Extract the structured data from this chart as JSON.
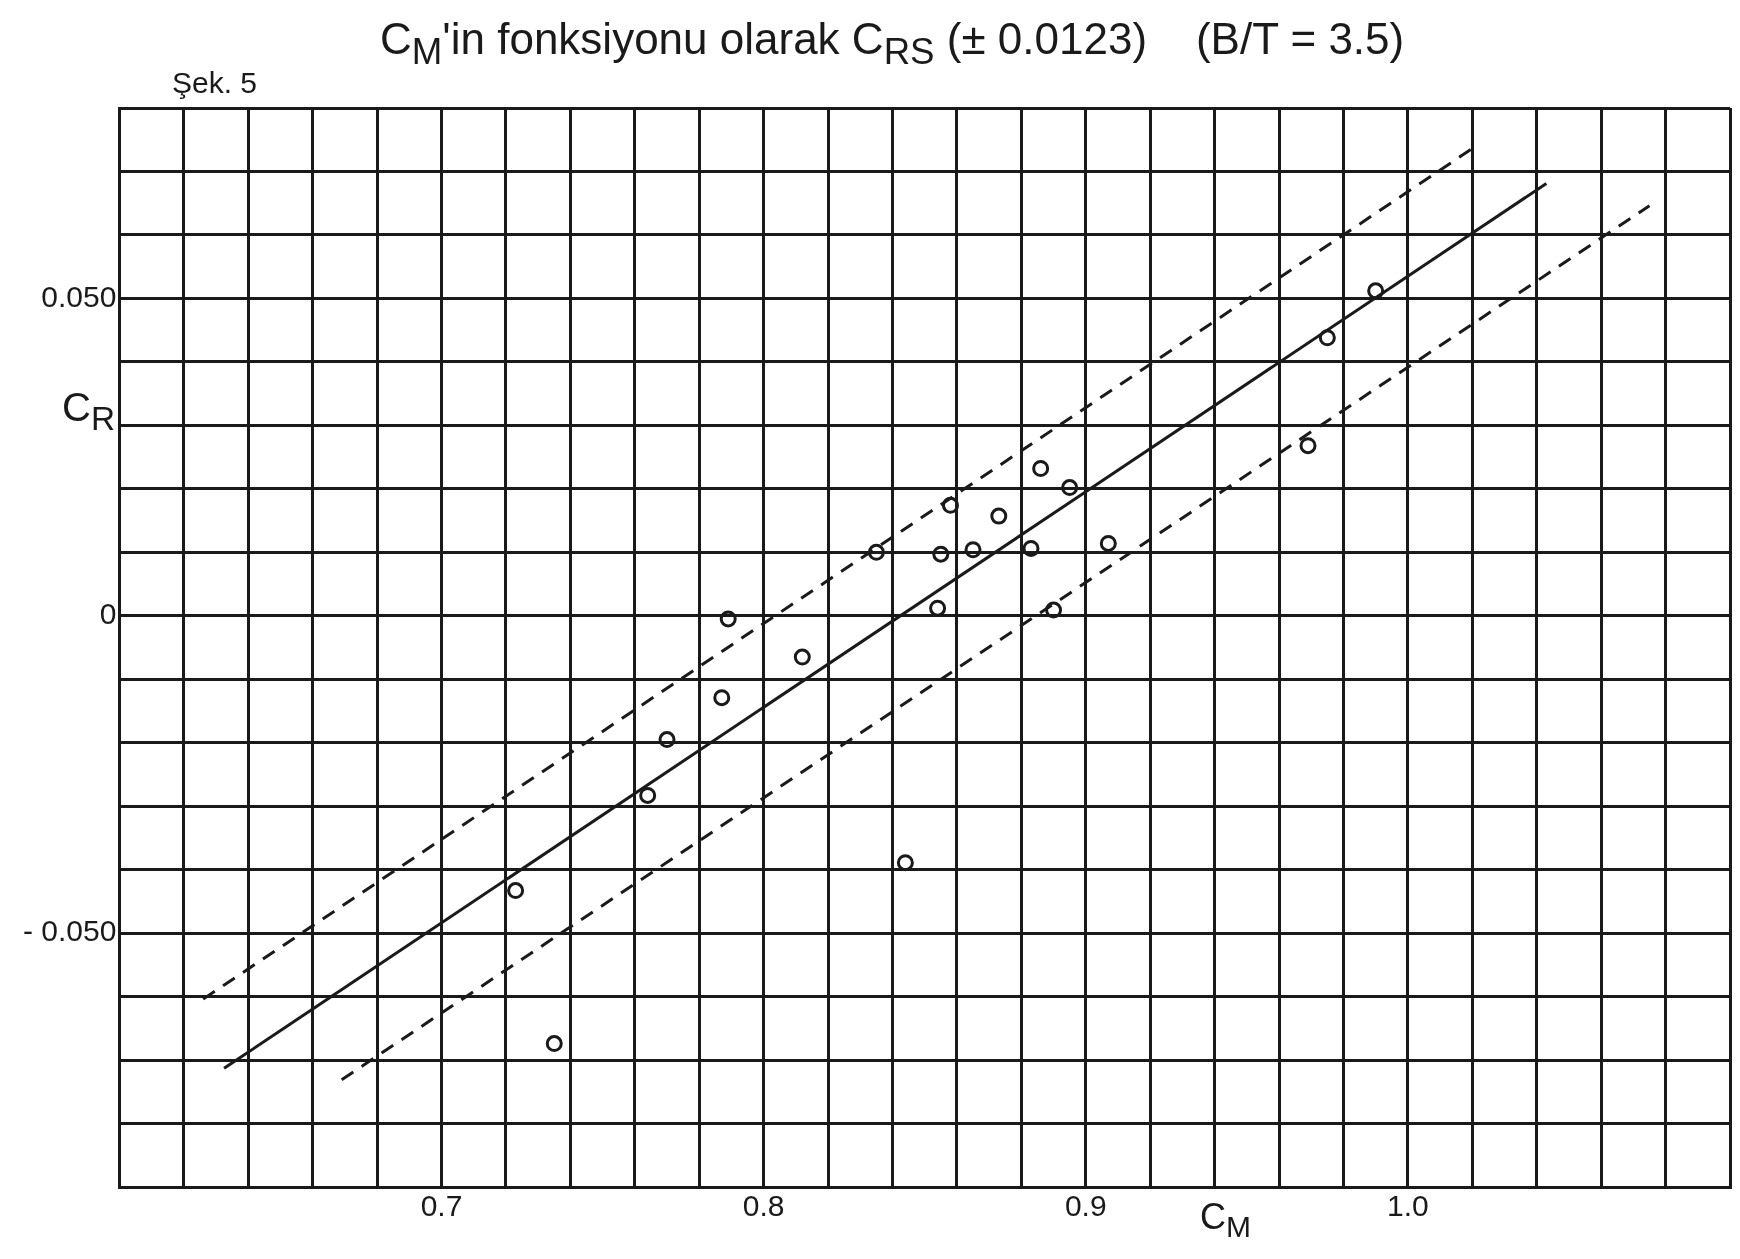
{
  "chart_data": {
    "type": "scatter",
    "title": "C$_{M}$'in fonksiyonu olarak C$_{RS}$ (± 0.0123)    (B/T = 3.5)",
    "xlabel": "C$_{M}$",
    "ylabel": "C$_{R}$",
    "annotations": [
      "Şek. 5"
    ],
    "xlim": [
      0.6,
      1.1
    ],
    "ylim": [
      -0.09,
      0.08
    ],
    "xticks": [
      {
        "value": 0.6,
        "label": null
      },
      {
        "value": 0.62,
        "label": null
      },
      {
        "value": 0.64,
        "label": null
      },
      {
        "value": 0.66,
        "label": null
      },
      {
        "value": 0.68,
        "label": null
      },
      {
        "value": 0.7,
        "label": "0.7"
      },
      {
        "value": 0.72,
        "label": null
      },
      {
        "value": 0.74,
        "label": null
      },
      {
        "value": 0.76,
        "label": null
      },
      {
        "value": 0.78,
        "label": null
      },
      {
        "value": 0.8,
        "label": "0.8"
      },
      {
        "value": 0.82,
        "label": null
      },
      {
        "value": 0.84,
        "label": null
      },
      {
        "value": 0.86,
        "label": null
      },
      {
        "value": 0.88,
        "label": null
      },
      {
        "value": 0.9,
        "label": "0.9"
      },
      {
        "value": 0.92,
        "label": null
      },
      {
        "value": 0.94,
        "label": null
      },
      {
        "value": 0.96,
        "label": null
      },
      {
        "value": 0.98,
        "label": null
      },
      {
        "value": 1.0,
        "label": "1.0"
      },
      {
        "value": 1.02,
        "label": null
      },
      {
        "value": 1.04,
        "label": null
      },
      {
        "value": 1.06,
        "label": null
      },
      {
        "value": 1.08,
        "label": null
      },
      {
        "value": 1.1,
        "label": null
      }
    ],
    "yticks": [
      {
        "value": -0.09,
        "label": null
      },
      {
        "value": -0.08,
        "label": null
      },
      {
        "value": -0.07,
        "label": null
      },
      {
        "value": -0.06,
        "label": null
      },
      {
        "value": -0.05,
        "label": "- 0.050"
      },
      {
        "value": -0.04,
        "label": null
      },
      {
        "value": -0.03,
        "label": null
      },
      {
        "value": -0.02,
        "label": null
      },
      {
        "value": -0.01,
        "label": null
      },
      {
        "value": 0,
        "label": "0"
      },
      {
        "value": 0.01,
        "label": null
      },
      {
        "value": 0.02,
        "label": null
      },
      {
        "value": 0.03,
        "label": null
      },
      {
        "value": 0.04,
        "label": null
      },
      {
        "value": 0.05,
        "label": "0.050"
      },
      {
        "value": 0.06,
        "label": null
      },
      {
        "value": 0.07,
        "label": null
      },
      {
        "value": 0.08,
        "label": null
      }
    ],
    "grid": true,
    "legend": false,
    "series": [
      {
        "type": "scatter",
        "color": "#1a1a1a",
        "marker": "circle",
        "x": [
          0.723,
          0.735,
          0.764,
          0.77,
          0.787,
          0.789,
          0.812,
          0.835,
          0.844,
          0.854,
          0.855,
          0.858,
          0.865,
          0.873,
          0.883,
          0.886,
          0.89,
          0.895,
          0.907,
          0.969,
          0.975,
          0.99
        ],
        "values": [
          -0.0433,
          -0.0674,
          -0.0283,
          -0.0195,
          -0.0129,
          -0.0005,
          -0.0065,
          0.01,
          -0.0389,
          0.0012,
          0.0097,
          0.0174,
          0.0104,
          0.0157,
          0.0106,
          0.0232,
          0.0009,
          0.0202,
          0.0114,
          0.0268,
          0.0438,
          0.0512
        ]
      },
      {
        "type": "line",
        "color": "#1a1a1a",
        "marker": "none",
        "line_style": "solid",
        "x": [
          0.6325,
          1.043
        ],
        "values": [
          -0.0713,
          0.0681
        ]
      },
      {
        "type": "line",
        "color": "#1a1a1a",
        "marker": "none",
        "line_style": "dashed",
        "x": [
          0.626,
          1.022
        ],
        "values": [
          -0.0604,
          0.0743
        ]
      },
      {
        "type": "line",
        "color": "#1a1a1a",
        "marker": "none",
        "line_style": "dashed",
        "x": [
          0.669,
          1.075
        ],
        "values": [
          -0.0731,
          0.0646
        ]
      }
    ]
  }
}
